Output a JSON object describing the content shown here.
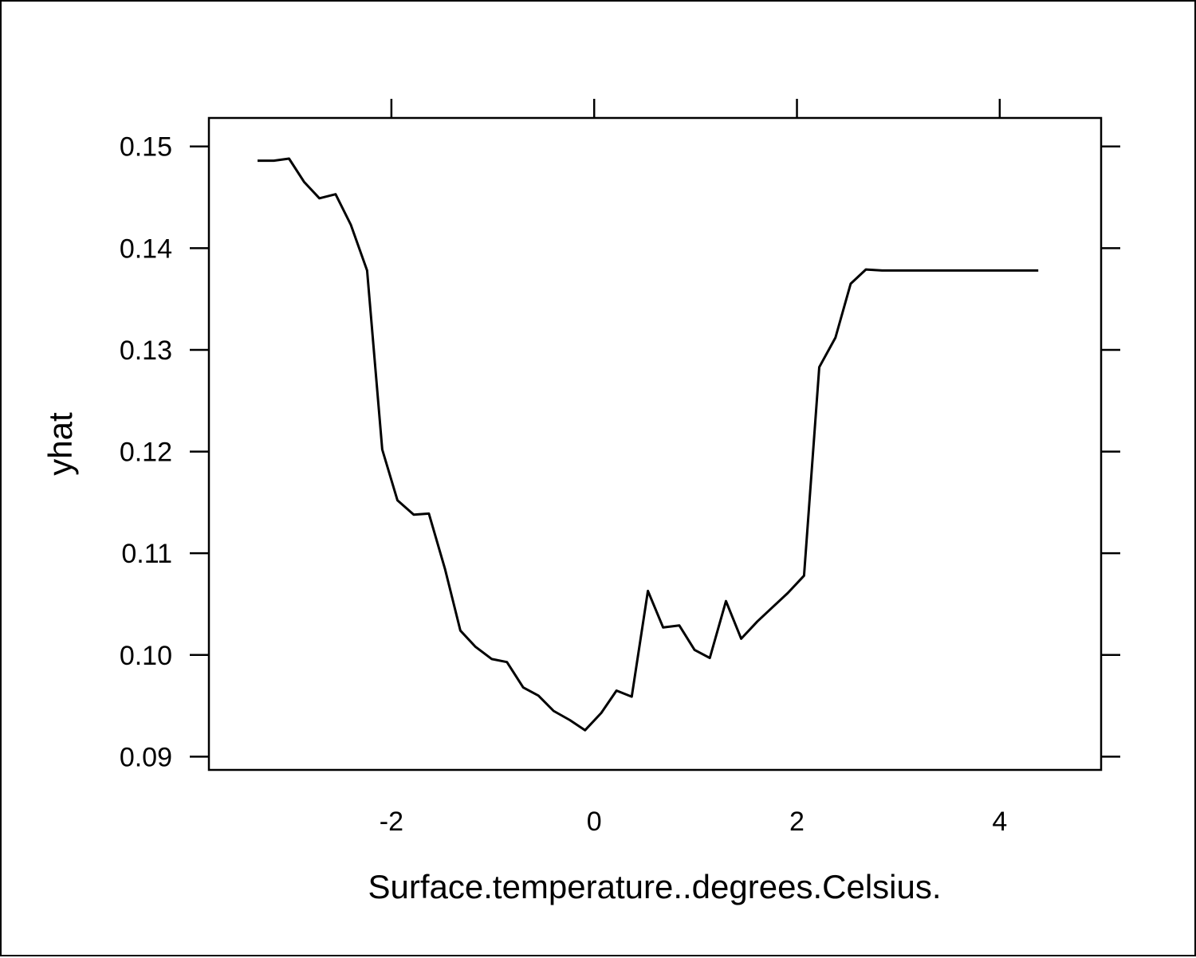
{
  "chart_data": {
    "type": "line",
    "title": "",
    "xlabel": "Surface.temperature..degrees.Celsius.",
    "ylabel": "yhat",
    "xlim": [
      -3.8,
      5.0
    ],
    "ylim": [
      0.0887,
      0.1528
    ],
    "x_ticks": [
      -2,
      0,
      2,
      4
    ],
    "x_tick_labels": [
      "-2",
      "0",
      "2",
      "4"
    ],
    "y_ticks": [
      0.09,
      0.1,
      0.11,
      0.12,
      0.13,
      0.14,
      0.15
    ],
    "y_tick_labels": [
      "0.09",
      "0.10",
      "0.11",
      "0.12",
      "0.13",
      "0.14",
      "0.15"
    ],
    "grid": false,
    "line_color": "#000000",
    "series": [
      {
        "x": [
          -3.32,
          -3.16,
          -3.01,
          -2.86,
          -2.71,
          -2.55,
          -2.4,
          -2.24,
          -2.09,
          -1.94,
          -1.78,
          -1.63,
          -1.47,
          -1.32,
          -1.17,
          -1.01,
          -0.86,
          -0.7,
          -0.55,
          -0.4,
          -0.24,
          -0.09,
          0.07,
          0.22,
          0.37,
          0.53,
          0.68,
          0.84,
          0.99,
          1.14,
          1.3,
          1.45,
          1.61,
          1.76,
          1.91,
          2.07,
          2.22,
          2.38,
          2.53,
          2.68,
          2.84,
          2.99,
          3.14,
          3.3,
          3.45,
          3.61,
          3.76,
          3.91,
          4.07,
          4.22,
          4.38
        ],
        "y": [
          0.1486,
          0.1486,
          0.1488,
          0.1465,
          0.1449,
          0.1453,
          0.1423,
          0.1378,
          0.1202,
          0.1152,
          0.1138,
          0.1139,
          0.1084,
          0.1024,
          0.1008,
          0.0996,
          0.0993,
          0.0968,
          0.096,
          0.0945,
          0.0936,
          0.0926,
          0.0943,
          0.0965,
          0.0959,
          0.1063,
          0.1027,
          0.1029,
          0.1005,
          0.0997,
          0.1053,
          0.1016,
          0.1033,
          0.1047,
          0.1061,
          0.1078,
          0.1283,
          0.1312,
          0.1365,
          0.1379,
          0.1378,
          0.1378,
          0.1378,
          0.1378,
          0.1378,
          0.1378,
          0.1378,
          0.1378,
          0.1378,
          0.1378,
          0.1378
        ]
      }
    ]
  }
}
